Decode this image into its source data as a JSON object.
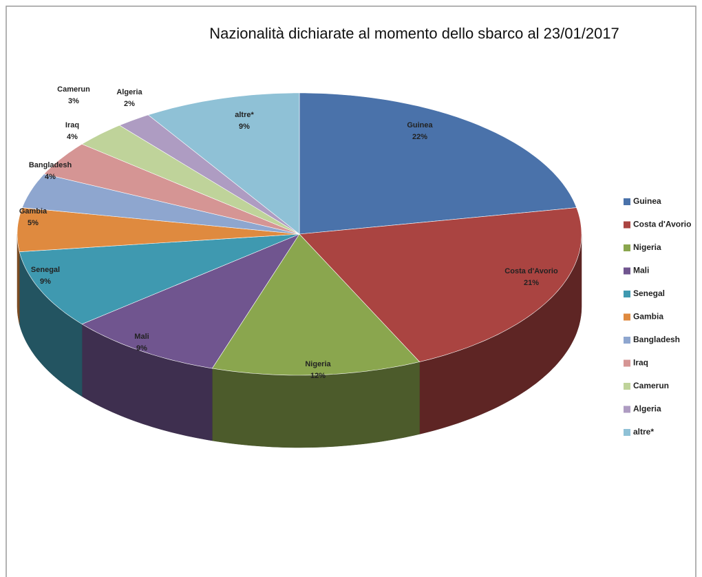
{
  "chart_data": {
    "type": "pie",
    "title": "Nazionalità dichiarate al momento dello sbarco al  23/01/2017",
    "categories": [
      "Guinea",
      "Costa d'Avorio",
      "Nigeria",
      "Mali",
      "Senegal",
      "Gambia",
      "Bangladesh",
      "Iraq",
      "Camerun",
      "Algeria",
      "altre*"
    ],
    "values": [
      22,
      21,
      12,
      9,
      9,
      5,
      4,
      4,
      3,
      2,
      9
    ],
    "value_labels": [
      "22%",
      "21%",
      "12%",
      "9%",
      "9%",
      "5%",
      "4%",
      "4%",
      "3%",
      "2%",
      "9%"
    ],
    "colors": [
      "#4a72aa",
      "#aa4441",
      "#8aa64e",
      "#70558f",
      "#3f99b0",
      "#df8a3f",
      "#8ea6cf",
      "#d59594",
      "#bfd39a",
      "#ae9cc2",
      "#8fc1d6"
    ],
    "legend": "right"
  }
}
